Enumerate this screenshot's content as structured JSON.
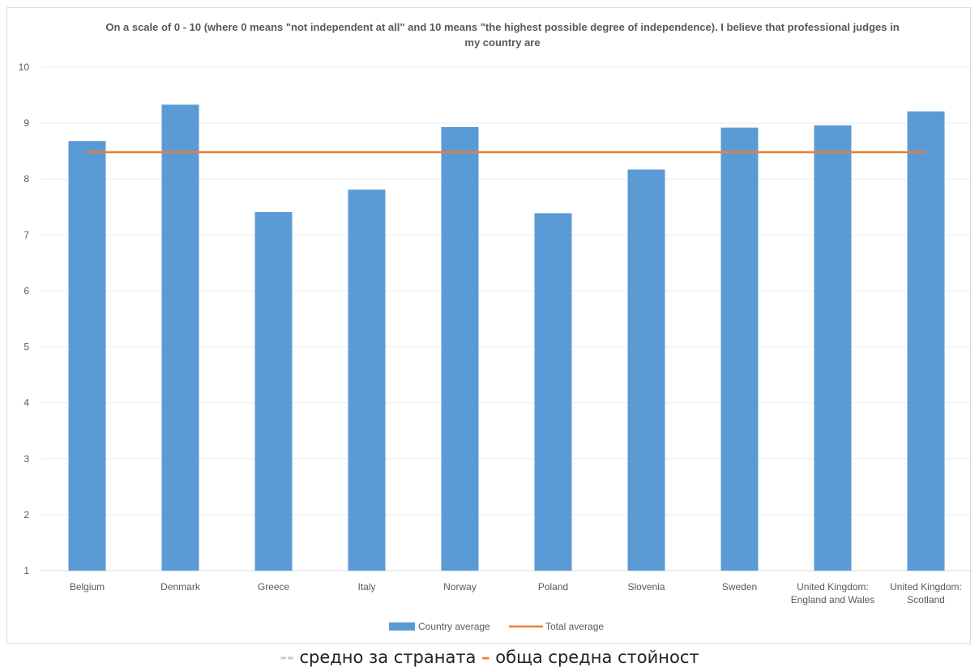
{
  "chart_data": {
    "type": "bar",
    "title": "On a scale of 0 - 10 (where 0 means \"not independent at all\" and 10 means \"the highest possible degree of independence). I believe that professional judges in my country are",
    "categories": [
      "Belgium",
      "Denmark",
      "Greece",
      "Italy",
      "Norway",
      "Poland",
      "Slovenia",
      "Sweden",
      "United Kingdom: England and Wales",
      "United Kingdom: Scotland"
    ],
    "category_lines": [
      [
        "Belgium"
      ],
      [
        "Denmark"
      ],
      [
        "Greece"
      ],
      [
        "Italy"
      ],
      [
        "Norway"
      ],
      [
        "Poland"
      ],
      [
        "Slovenia"
      ],
      [
        "Sweden"
      ],
      [
        "United Kingdom:",
        "England and Wales"
      ],
      [
        "United Kingdom:",
        "Scotland"
      ]
    ],
    "series": [
      {
        "name": "Country average",
        "type": "bar",
        "color": "#5b9bd5",
        "values": [
          8.68,
          9.33,
          7.41,
          7.81,
          8.93,
          7.39,
          8.17,
          8.92,
          8.96,
          9.21
        ]
      },
      {
        "name": "Total average",
        "type": "line",
        "color": "#ed7d31",
        "values": [
          8.48,
          8.48,
          8.48,
          8.48,
          8.48,
          8.48,
          8.48,
          8.48,
          8.48,
          8.48
        ]
      }
    ],
    "ylim": [
      1,
      10
    ],
    "yticks": [
      1,
      2,
      3,
      4,
      5,
      6,
      7,
      8,
      9,
      10
    ],
    "grid": true,
    "legend_position": "bottom"
  },
  "caption": {
    "dash1": "--",
    "text1": " средно за страната ",
    "dash2": "–",
    "text2": " обща средна стойност"
  }
}
